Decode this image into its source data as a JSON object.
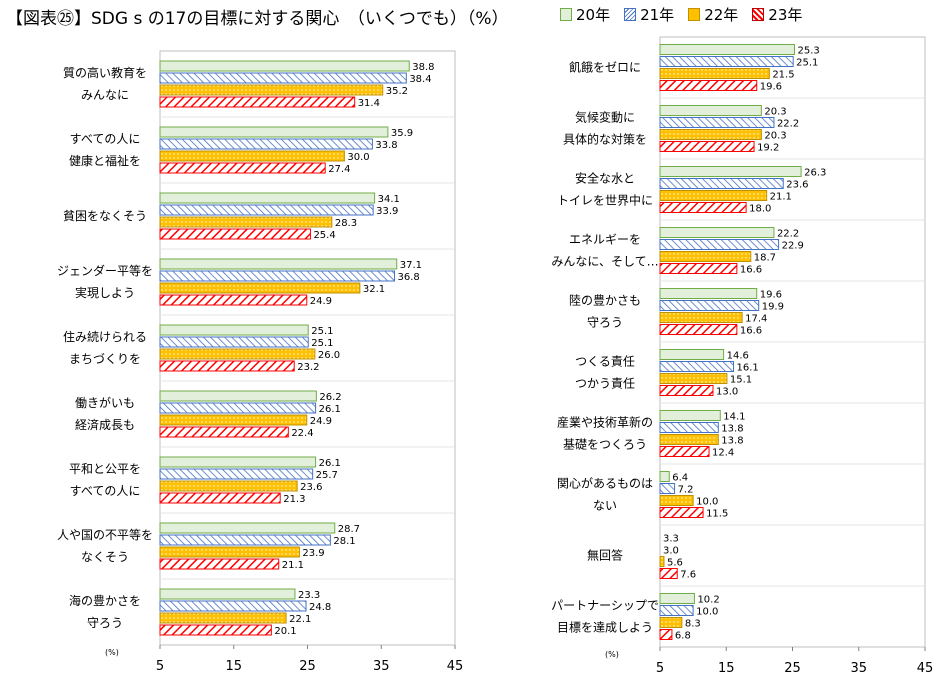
{
  "header": {
    "title": "【図表㉕】SDG s の17の目標に対する関心　（いくつでも）（%）"
  },
  "legend": [
    {
      "label": "20年",
      "color": "#e2efda",
      "stroke": "#70ad47",
      "pattern": "solid"
    },
    {
      "label": "21年",
      "color": "#ffffff",
      "stroke": "#4472c4",
      "pattern": "hatch-blue"
    },
    {
      "label": "22年",
      "color": "#ffc000",
      "stroke": "#bf9000",
      "pattern": "dots"
    },
    {
      "label": "23年",
      "color": "#ff0000",
      "stroke": "#c00000",
      "pattern": "hatch-red"
    }
  ],
  "chart_data": [
    {
      "type": "bar",
      "orientation": "horizontal",
      "unit_label": "(%)",
      "xlim": [
        5,
        45
      ],
      "xticks": [
        "5",
        "15",
        "25",
        "35",
        "45"
      ],
      "categories": [
        [
          "質の高い教育を",
          "みんなに"
        ],
        [
          "すべての人に",
          "健康と福祉を"
        ],
        [
          "貧困をなくそう"
        ],
        [
          "ジェンダー平等を",
          "実現しよう"
        ],
        [
          "住み続けられる",
          "まちづくりを"
        ],
        [
          "働きがいも",
          "経済成長も"
        ],
        [
          "平和と公平を",
          "すべての人に"
        ],
        [
          "人や国の不平等を",
          "なくそう"
        ],
        [
          "海の豊かさを",
          "守ろう"
        ]
      ],
      "series": [
        {
          "name": "20年",
          "values": [
            38.8,
            35.9,
            34.1,
            37.1,
            25.1,
            26.2,
            26.1,
            28.7,
            23.3
          ]
        },
        {
          "name": "21年",
          "values": [
            38.4,
            33.8,
            33.9,
            36.8,
            25.1,
            26.1,
            25.7,
            28.1,
            24.8
          ]
        },
        {
          "name": "22年",
          "values": [
            35.2,
            30.0,
            28.3,
            32.1,
            26.0,
            24.9,
            23.6,
            23.9,
            22.1
          ]
        },
        {
          "name": "23年",
          "values": [
            31.4,
            27.4,
            25.4,
            24.9,
            23.2,
            22.4,
            21.3,
            21.1,
            20.1
          ]
        }
      ],
      "value_labels": [
        [
          "38.8",
          "35.9",
          "34.1",
          "37.1",
          "25.1",
          "26.2",
          "26.1",
          "28.7",
          "23.3"
        ],
        [
          "38.4",
          "33.8",
          "33.9",
          "36.8",
          "25.1",
          "26.1",
          "25.7",
          "28.1",
          "24.8"
        ],
        [
          "35.2",
          "30.0",
          "28.3",
          "32.1",
          "26.0",
          "24.9",
          "23.6",
          "23.9",
          "22.1"
        ],
        [
          "31.4",
          "27.4",
          "25.4",
          "24.9",
          "23.2",
          "22.4",
          "21.3",
          "21.1",
          "20.1"
        ]
      ]
    },
    {
      "type": "bar",
      "orientation": "horizontal",
      "unit_label": "(%)",
      "xlim": [
        5,
        45
      ],
      "xticks": [
        "5",
        "15",
        "25",
        "35",
        "45"
      ],
      "categories": [
        [
          "飢餓をゼロに"
        ],
        [
          "気候変動に",
          "具体的な対策を"
        ],
        [
          "安全な水と",
          "トイレを世界中に"
        ],
        [
          "エネルギーを",
          "みんなに、そして…"
        ],
        [
          "陸の豊かさも",
          "守ろう"
        ],
        [
          "つくる責任",
          "つかう責任"
        ],
        [
          "産業や技術革新の",
          "基礎をつくろう"
        ],
        [
          "関心があるものは",
          "ない"
        ],
        [
          "無回答"
        ],
        [
          "パートナーシップで",
          "目標を達成しよう"
        ]
      ],
      "series": [
        {
          "name": "20年",
          "values": [
            25.3,
            20.3,
            26.3,
            22.2,
            19.6,
            14.6,
            14.1,
            6.4,
            3.3,
            10.2
          ]
        },
        {
          "name": "21年",
          "values": [
            25.1,
            22.2,
            23.6,
            22.9,
            19.9,
            16.1,
            13.8,
            7.2,
            3.0,
            10.0
          ]
        },
        {
          "name": "22年",
          "values": [
            21.5,
            20.3,
            21.1,
            18.7,
            17.4,
            15.1,
            13.8,
            10.0,
            5.6,
            8.3
          ]
        },
        {
          "name": "23年",
          "values": [
            19.6,
            19.2,
            18.0,
            16.6,
            16.6,
            13.0,
            12.4,
            11.5,
            7.6,
            6.8
          ]
        }
      ],
      "value_labels": [
        [
          "25.3",
          "20.3",
          "26.3",
          "22.2",
          "19.6",
          "14.6",
          "14.1",
          "6.4",
          "3.3",
          "10.2"
        ],
        [
          "25.1",
          "22.2",
          "23.6",
          "22.9",
          "19.9",
          "16.1",
          "13.8",
          "7.2",
          "3.0",
          "10.0"
        ],
        [
          "21.5",
          "20.3",
          "21.1",
          "18.7",
          "17.4",
          "15.1",
          "13.8",
          "10.0",
          "5.6",
          "8.3"
        ],
        [
          "19.6",
          "19.2",
          "18.0",
          "16.6",
          "16.6",
          "13.0",
          "12.4",
          "11.5",
          "7.6",
          "6.8"
        ]
      ]
    }
  ]
}
